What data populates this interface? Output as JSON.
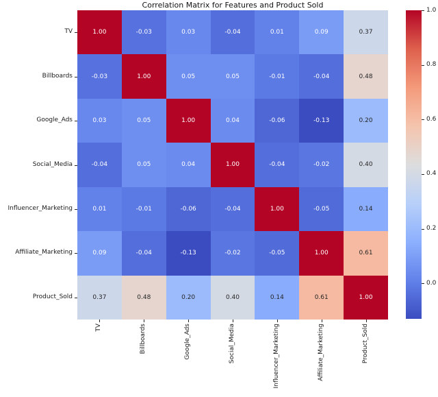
{
  "title": "Correlation Matrix for Features and Product Sold",
  "chart_data": {
    "type": "heatmap",
    "labels": [
      "TV",
      "Billboards",
      "Google_Ads",
      "Social_Media",
      "Influencer_Marketing",
      "Affiliate_Marketing",
      "Product_Sold"
    ],
    "matrix": [
      [
        1.0,
        -0.03,
        0.03,
        -0.04,
        0.01,
        0.09,
        0.37
      ],
      [
        -0.03,
        1.0,
        0.05,
        0.05,
        -0.01,
        -0.04,
        0.48
      ],
      [
        0.03,
        0.05,
        1.0,
        0.04,
        -0.06,
        -0.13,
        0.2
      ],
      [
        -0.04,
        0.05,
        0.04,
        1.0,
        -0.04,
        -0.02,
        0.4
      ],
      [
        0.01,
        -0.01,
        -0.06,
        -0.04,
        1.0,
        -0.05,
        0.14
      ],
      [
        0.09,
        -0.04,
        -0.13,
        -0.02,
        -0.05,
        1.0,
        0.61
      ],
      [
        0.37,
        0.48,
        0.2,
        0.4,
        0.14,
        0.61,
        1.0
      ]
    ],
    "vmin": -0.13,
    "vmax": 1.0,
    "cell_decimals": 2,
    "colorbar_ticks": [
      1.0,
      0.8,
      0.6,
      0.4,
      0.2,
      0.0
    ],
    "colorbar_tick_decimals": 1,
    "legend_position": "right",
    "grid": false,
    "colormap": {
      "name": "coolwarm",
      "anchors": [
        {
          "t": 0.0,
          "hex": "#3B4CC0"
        },
        {
          "t": 0.125,
          "hex": "#6282EA"
        },
        {
          "t": 0.25,
          "hex": "#8DB0FE"
        },
        {
          "t": 0.375,
          "hex": "#B8D0F9"
        },
        {
          "t": 0.5,
          "hex": "#DDDDDD"
        },
        {
          "t": 0.625,
          "hex": "#F5C4AD"
        },
        {
          "t": 0.75,
          "hex": "#F49A7B"
        },
        {
          "t": 0.875,
          "hex": "#DE604D"
        },
        {
          "t": 1.0,
          "hex": "#B40426"
        }
      ]
    },
    "annotation_text_colors": {
      "dark": "#262626",
      "light": "#FFFFFF"
    }
  }
}
